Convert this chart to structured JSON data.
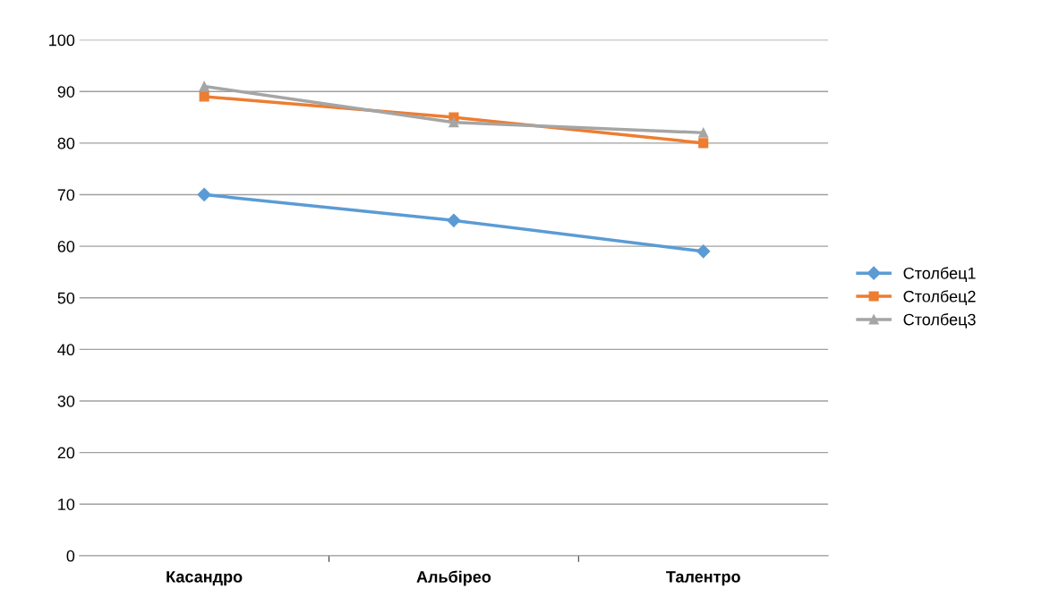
{
  "chart_data": {
    "type": "line",
    "categories": [
      "Касандро",
      "Альбірео",
      "Талентро"
    ],
    "series": [
      {
        "name": "Столбец1",
        "color": "#5b9bd5",
        "marker": "diamond",
        "values": [
          70,
          65,
          59
        ]
      },
      {
        "name": "Столбец2",
        "color": "#ed7d31",
        "marker": "square",
        "values": [
          89,
          85,
          80
        ]
      },
      {
        "name": "Столбец3",
        "color": "#a5a5a5",
        "marker": "triangle",
        "values": [
          91,
          84,
          82
        ]
      }
    ],
    "ylim": [
      0,
      100
    ],
    "yticks": [
      0,
      10,
      20,
      30,
      40,
      50,
      60,
      70,
      80,
      90,
      100
    ],
    "grid": "y",
    "legend": "right",
    "line_style": "solid"
  }
}
